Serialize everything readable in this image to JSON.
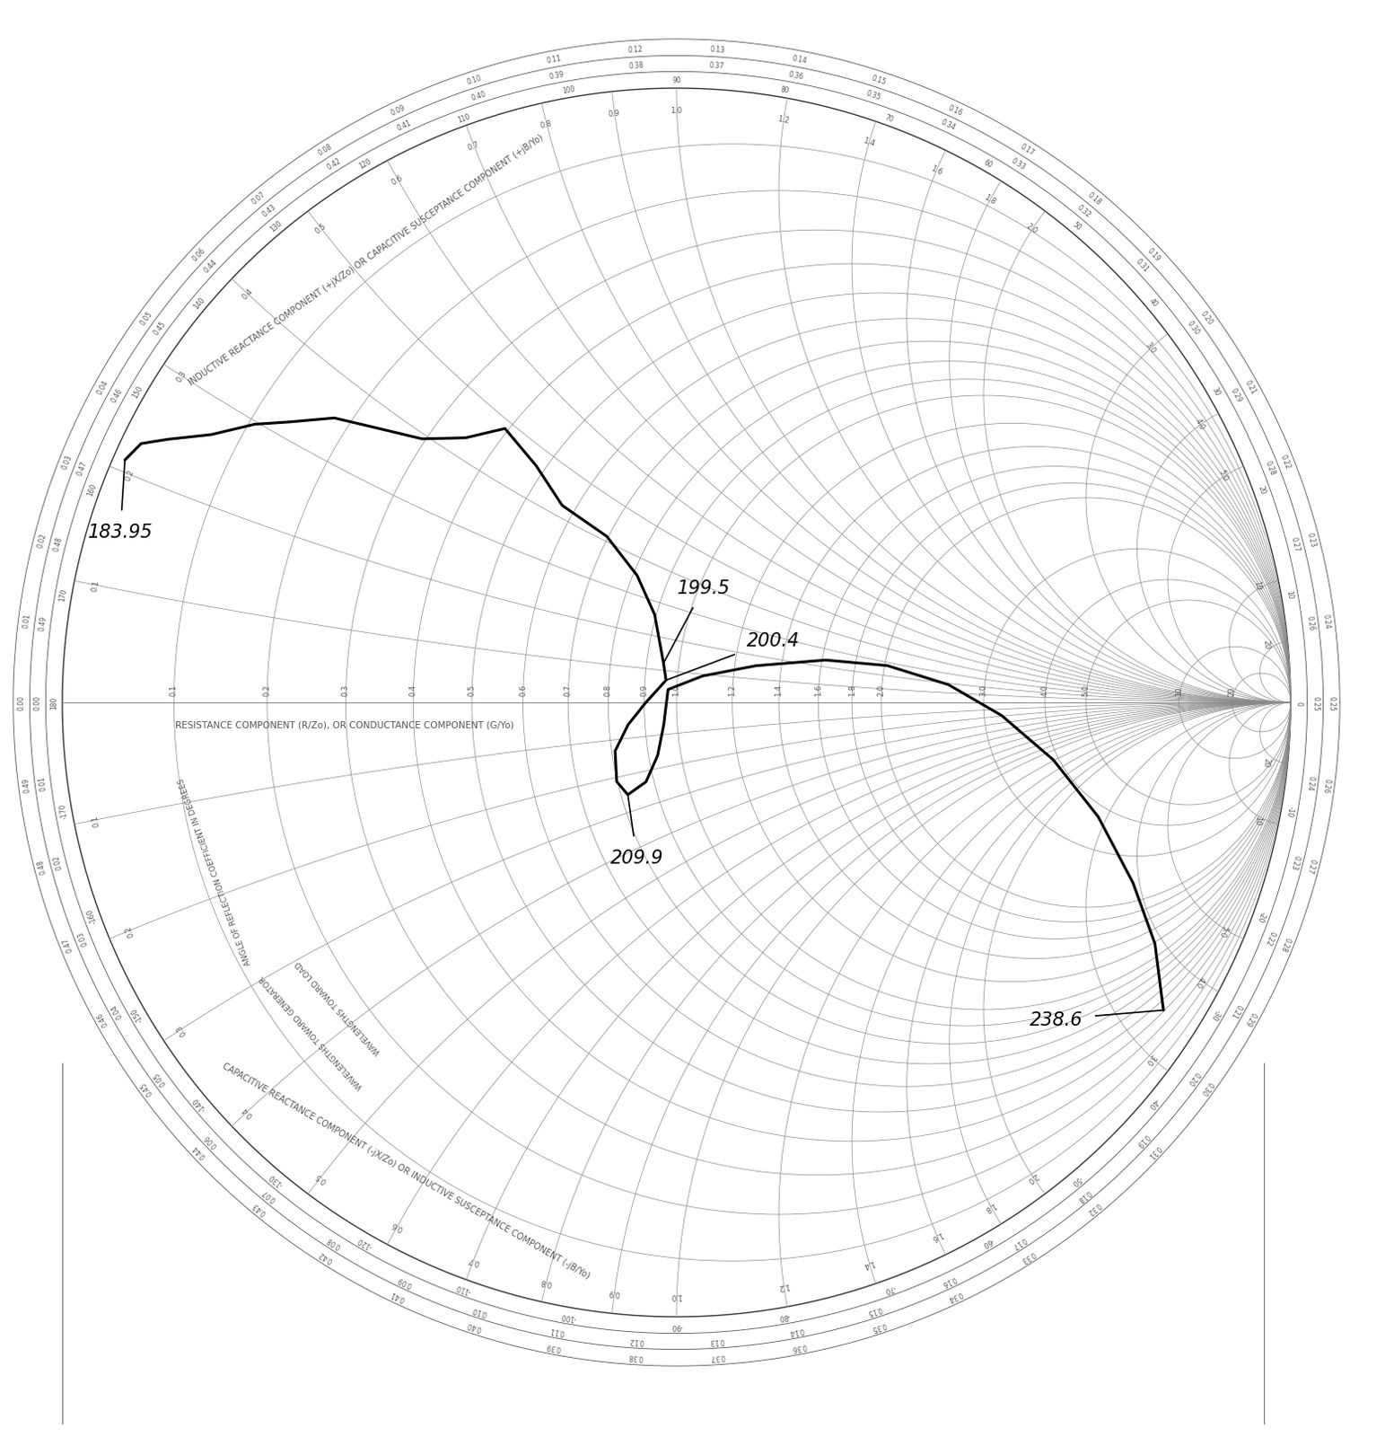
{
  "chart_data": {
    "type": "smith",
    "resistance_axis_title": "RESISTANCE COMPONENT (R/Zo), OR CONDUCTANCE COMPONENT (G/Yo)",
    "upper_reactance_title": "INDUCTIVE REACTANCE COMPONENT (+jX/Zo) OR CAPACITIVE SUSCEPTANCE COMPONENT (+jB/Yo)",
    "lower_reactance_title": "CAPACITIVE REACTANCE COMPONENT (-jX/Zo) OR INDUCTIVE SUSCEPTANCE COMPONENT (-jB/Yo)",
    "ring_titles": {
      "angle": "ANGLE OF REFLECTION COEFFICIENT IN DEGREES",
      "toward_generator": "WAVELENGTHS TOWARD GENERATOR",
      "toward_load": "WAVELENGTHS TOWARD LOAD"
    },
    "resistance_circles": [
      0.1,
      0.2,
      0.3,
      0.4,
      0.5,
      0.6,
      0.7,
      0.8,
      0.9,
      1.0,
      1.2,
      1.4,
      1.6,
      1.8,
      2.0,
      3.0,
      4.0,
      5.0,
      10,
      20
    ],
    "reactance_arcs": [
      0.1,
      0.2,
      0.3,
      0.4,
      0.5,
      0.6,
      0.7,
      0.8,
      0.9,
      1.0,
      1.2,
      1.4,
      1.6,
      1.8,
      2.0,
      3.0,
      4.0,
      5.0,
      10,
      20
    ],
    "angle_ticks": [
      180,
      170,
      160,
      150,
      140,
      130,
      120,
      110,
      100,
      90,
      80,
      70,
      60,
      50,
      40,
      30,
      20,
      10,
      0,
      -10,
      -20,
      -30,
      -40,
      -50,
      -60,
      -70,
      -80,
      -90,
      -100,
      -110,
      -120,
      -130,
      -140,
      -150,
      -160,
      -170
    ],
    "wavelength_ticks": [
      "0.00",
      "0.01",
      "0.02",
      "0.03",
      "0.04",
      "0.05",
      "0.06",
      "0.07",
      "0.08",
      "0.09",
      "0.10",
      "0.11",
      "0.12",
      "0.13",
      "0.14",
      "0.15",
      "0.16",
      "0.17",
      "0.18",
      "0.19",
      "0.20",
      "0.21",
      "0.22",
      "0.23",
      "0.24",
      "0.25",
      "0.26",
      "0.27",
      "0.28",
      "0.29",
      "0.30",
      "0.31",
      "0.32",
      "0.33",
      "0.34",
      "0.35",
      "0.36",
      "0.37",
      "0.38",
      "0.39",
      "0.40",
      "0.41",
      "0.42",
      "0.43",
      "0.44",
      "0.45",
      "0.46",
      "0.47",
      "0.48",
      "0.49"
    ],
    "locus": {
      "color": "#000000",
      "r": [
        0.01,
        0.017,
        0.037,
        0.072,
        0.106,
        0.138,
        0.18,
        0.235,
        0.295,
        0.35,
        0.394,
        0.482,
        0.571,
        0.696,
        0.811,
        0.895,
        0.951,
        0.964,
        0.905,
        0.852,
        0.809,
        0.798,
        0.818,
        0.877,
        0.927,
        0.957,
        0.972,
        1.085,
        1.286,
        1.62,
        2.02,
        2.58,
        3.24,
        3.89,
        3.72,
        2.38,
        1.18,
        0.41
      ],
      "x": [
        0.21,
        0.229,
        0.243,
        0.266,
        0.297,
        0.319,
        0.351,
        0.371,
        0.393,
        0.433,
        0.486,
        0.465,
        0.425,
        0.412,
        0.352,
        0.262,
        0.122,
        0.07,
        0.0,
        -0.062,
        -0.13,
        -0.211,
        -0.253,
        -0.231,
        -0.161,
        -0.069,
        0.041,
        0.094,
        0.157,
        0.239,
        0.276,
        0.186,
        -0.19,
        -1.18,
        -2.8,
        -3.86,
        -3.87,
        -3.41
      ],
      "point_labels": [
        "183.95",
        null,
        null,
        null,
        null,
        null,
        null,
        null,
        null,
        null,
        null,
        null,
        null,
        null,
        null,
        null,
        "199.5",
        "200.4",
        null,
        null,
        null,
        null,
        "209.9",
        null,
        null,
        null,
        null,
        null,
        null,
        null,
        null,
        null,
        null,
        null,
        null,
        null,
        null,
        "238.6"
      ]
    }
  }
}
